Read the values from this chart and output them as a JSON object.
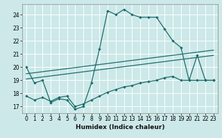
{
  "xlabel": "Humidex (Indice chaleur)",
  "background_color": "#cce8e8",
  "grid_color": "#ffffff",
  "line_color": "#1a6b6b",
  "xlim": [
    -0.5,
    23.5
  ],
  "ylim": [
    16.5,
    24.8
  ],
  "yticks": [
    17,
    18,
    19,
    20,
    21,
    22,
    23,
    24
  ],
  "xticks": [
    0,
    1,
    2,
    3,
    4,
    5,
    6,
    7,
    8,
    9,
    10,
    11,
    12,
    13,
    14,
    15,
    16,
    17,
    18,
    19,
    20,
    21,
    22,
    23
  ],
  "lines": [
    {
      "x": [
        0,
        1,
        2,
        3,
        4,
        5,
        6,
        7,
        8,
        9,
        10,
        11,
        12,
        13,
        14,
        15,
        16,
        17,
        18,
        19,
        20,
        21,
        22,
        23
      ],
      "y": [
        20.0,
        18.8,
        19.0,
        17.3,
        17.6,
        17.5,
        16.8,
        17.0,
        18.8,
        21.4,
        24.3,
        24.0,
        24.4,
        24.0,
        23.8,
        23.8,
        23.8,
        22.9,
        22.0,
        21.5,
        19.0,
        20.9,
        19.0,
        19.0
      ]
    },
    {
      "x": [
        0,
        23
      ],
      "y": [
        19.5,
        21.3
      ]
    },
    {
      "x": [
        0,
        23
      ],
      "y": [
        19.1,
        20.9
      ]
    },
    {
      "x": [
        0,
        1,
        2,
        3,
        4,
        5,
        6,
        7,
        8,
        9,
        10,
        11,
        12,
        13,
        14,
        15,
        16,
        17,
        18,
        19,
        20,
        21,
        22,
        23
      ],
      "y": [
        17.8,
        17.5,
        17.7,
        17.4,
        17.7,
        17.8,
        17.0,
        17.2,
        17.5,
        17.8,
        18.1,
        18.3,
        18.5,
        18.6,
        18.8,
        18.9,
        19.0,
        19.2,
        19.3,
        19.0,
        19.0,
        19.0,
        19.0,
        19.0
      ]
    }
  ],
  "line_styles": [
    {
      "marker": true,
      "lw": 0.9
    },
    {
      "marker": false,
      "lw": 0.9
    },
    {
      "marker": false,
      "lw": 0.9
    },
    {
      "marker": true,
      "lw": 0.9
    }
  ]
}
